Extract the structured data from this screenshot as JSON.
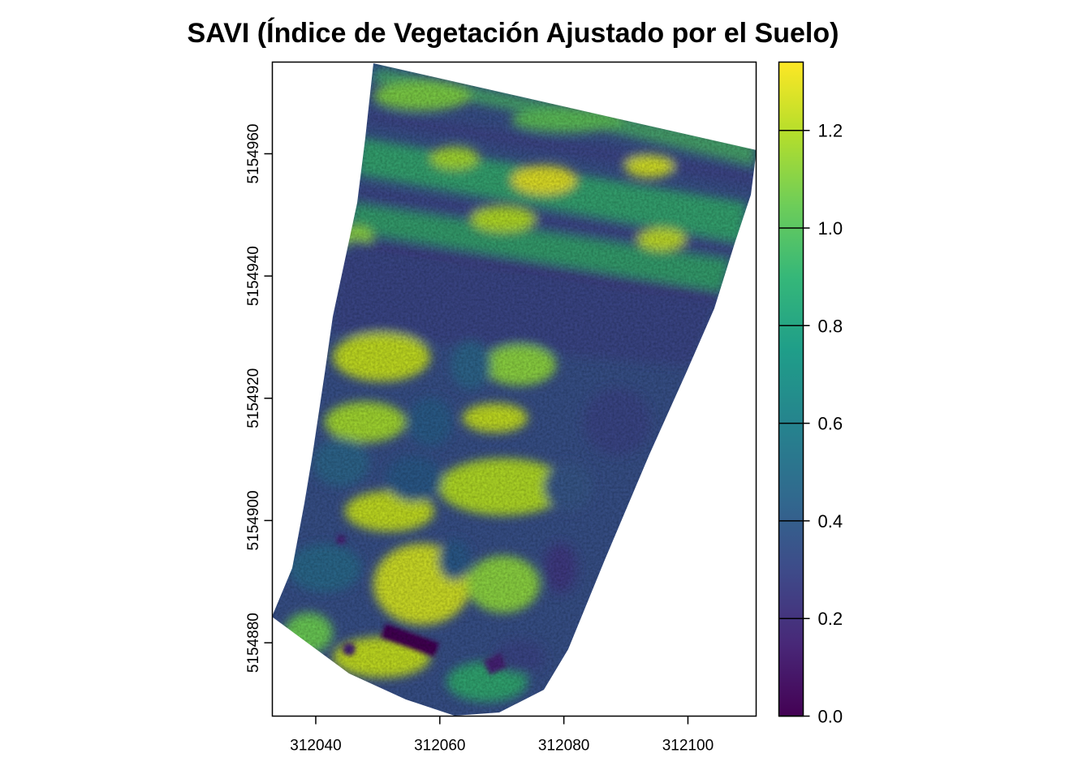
{
  "chart_data": {
    "type": "heatmap",
    "title": "SAVI (Índice de Vegetación Ajustado por el Suelo)",
    "xlabel": "",
    "ylabel": "",
    "x_ticks": [
      312040,
      312060,
      312080,
      312100
    ],
    "y_ticks": [
      5154880,
      5154900,
      5154920,
      5154940,
      5154960
    ],
    "xlim": [
      312033,
      312111
    ],
    "ylim": [
      5154868,
      5154975
    ],
    "colorbar": {
      "min": 0.0,
      "max": 1.34,
      "ticks": [
        "0.0",
        "0.2",
        "0.4",
        "0.6",
        "0.8",
        "1.0",
        "1.2"
      ],
      "palette": "viridis",
      "colors": [
        "#440154",
        "#482878",
        "#3e4a89",
        "#31688e",
        "#26828e",
        "#1f9e89",
        "#35b779",
        "#6dcd59",
        "#b4de2c",
        "#fde725"
      ]
    },
    "legend_position": "right",
    "grid": false
  }
}
